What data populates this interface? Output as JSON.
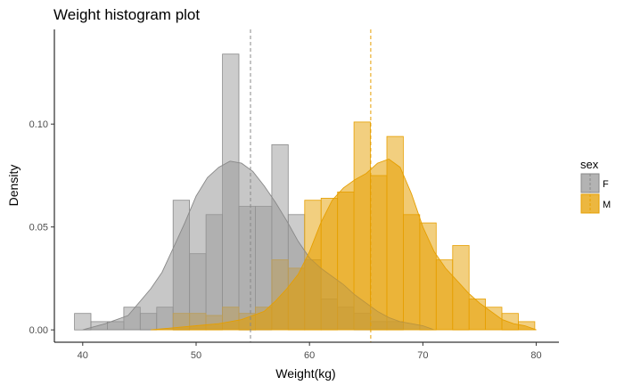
{
  "chart_data": {
    "type": "histogram",
    "title": "Weight histogram plot",
    "xlabel": "Weight(kg)",
    "ylabel": "Density",
    "xlim": [
      37.5,
      82
    ],
    "ylim": [
      -0.006,
      0.146
    ],
    "x_ticks": [
      40,
      50,
      60,
      70,
      80
    ],
    "x_tick_labels": [
      "40",
      "50",
      "60",
      "70",
      "80"
    ],
    "y_ticks": [
      0.0,
      0.05,
      0.1
    ],
    "y_tick_labels": [
      "0.00",
      "0.05",
      "0.10"
    ],
    "bin_width": 1.45,
    "grid": false,
    "legend": {
      "title": "sex",
      "position": "right"
    },
    "series": [
      {
        "name": "F",
        "fill": "#999999",
        "stroke": "#888888",
        "mean": 54.8,
        "bins": [
          {
            "x": 40.0,
            "y": 0.008
          },
          {
            "x": 41.45,
            "y": 0.004
          },
          {
            "x": 42.9,
            "y": 0.004
          },
          {
            "x": 44.35,
            "y": 0.011
          },
          {
            "x": 45.8,
            "y": 0.008
          },
          {
            "x": 47.25,
            "y": 0.011
          },
          {
            "x": 48.7,
            "y": 0.063
          },
          {
            "x": 50.15,
            "y": 0.037
          },
          {
            "x": 51.6,
            "y": 0.056
          },
          {
            "x": 53.05,
            "y": 0.134
          },
          {
            "x": 54.5,
            "y": 0.06
          },
          {
            "x": 55.95,
            "y": 0.06
          },
          {
            "x": 57.4,
            "y": 0.09
          },
          {
            "x": 58.85,
            "y": 0.056
          },
          {
            "x": 60.3,
            "y": 0.034
          },
          {
            "x": 61.75,
            "y": 0.015
          },
          {
            "x": 63.2,
            "y": 0.011
          },
          {
            "x": 64.65,
            "y": 0.008
          },
          {
            "x": 66.1,
            "y": 0.004
          },
          {
            "x": 67.55,
            "y": 0.004
          }
        ],
        "density": [
          [
            40,
            0.0
          ],
          [
            42,
            0.003
          ],
          [
            44,
            0.007
          ],
          [
            46,
            0.02
          ],
          [
            47,
            0.028
          ],
          [
            48,
            0.04
          ],
          [
            49,
            0.052
          ],
          [
            50,
            0.065
          ],
          [
            51,
            0.074
          ],
          [
            52,
            0.079
          ],
          [
            53,
            0.082
          ],
          [
            54,
            0.081
          ],
          [
            55,
            0.077
          ],
          [
            56,
            0.07
          ],
          [
            57,
            0.062
          ],
          [
            58,
            0.053
          ],
          [
            59,
            0.043
          ],
          [
            60,
            0.035
          ],
          [
            61,
            0.03
          ],
          [
            62,
            0.026
          ],
          [
            63,
            0.022
          ],
          [
            64,
            0.017
          ],
          [
            65,
            0.013
          ],
          [
            66,
            0.009
          ],
          [
            67,
            0.006
          ],
          [
            68,
            0.004
          ],
          [
            69,
            0.003
          ],
          [
            70,
            0.002
          ],
          [
            71,
            0.0
          ]
        ]
      },
      {
        "name": "M",
        "fill": "#E69F00",
        "stroke": "#E69F00",
        "mean": 65.4,
        "bins": [
          {
            "x": 48.7,
            "y": 0.008
          },
          {
            "x": 50.15,
            "y": 0.008
          },
          {
            "x": 51.6,
            "y": 0.007
          },
          {
            "x": 53.05,
            "y": 0.011
          },
          {
            "x": 54.5,
            "y": 0.008
          },
          {
            "x": 55.95,
            "y": 0.011
          },
          {
            "x": 57.4,
            "y": 0.034
          },
          {
            "x": 58.85,
            "y": 0.03
          },
          {
            "x": 60.3,
            "y": 0.063
          },
          {
            "x": 61.75,
            "y": 0.064
          },
          {
            "x": 63.2,
            "y": 0.067
          },
          {
            "x": 64.65,
            "y": 0.101
          },
          {
            "x": 66.1,
            "y": 0.075
          },
          {
            "x": 67.55,
            "y": 0.094
          },
          {
            "x": 69.0,
            "y": 0.056
          },
          {
            "x": 70.45,
            "y": 0.052
          },
          {
            "x": 71.9,
            "y": 0.034
          },
          {
            "x": 73.35,
            "y": 0.041
          },
          {
            "x": 74.8,
            "y": 0.015
          },
          {
            "x": 76.25,
            "y": 0.011
          },
          {
            "x": 77.7,
            "y": 0.008
          },
          {
            "x": 79.15,
            "y": 0.004
          }
        ],
        "density": [
          [
            46,
            0.0
          ],
          [
            48,
            0.001
          ],
          [
            50,
            0.002
          ],
          [
            52,
            0.003
          ],
          [
            54,
            0.005
          ],
          [
            56,
            0.009
          ],
          [
            57,
            0.014
          ],
          [
            58,
            0.02
          ],
          [
            59,
            0.027
          ],
          [
            60,
            0.038
          ],
          [
            61,
            0.052
          ],
          [
            62,
            0.063
          ],
          [
            63,
            0.069
          ],
          [
            64,
            0.073
          ],
          [
            65,
            0.076
          ],
          [
            66,
            0.081
          ],
          [
            67,
            0.083
          ],
          [
            68,
            0.079
          ],
          [
            69,
            0.066
          ],
          [
            70,
            0.05
          ],
          [
            71,
            0.038
          ],
          [
            72,
            0.03
          ],
          [
            73,
            0.024
          ],
          [
            74,
            0.018
          ],
          [
            75,
            0.013
          ],
          [
            76,
            0.009
          ],
          [
            77,
            0.005
          ],
          [
            78,
            0.003
          ],
          [
            79,
            0.002
          ],
          [
            80,
            0.0
          ]
        ]
      }
    ]
  }
}
